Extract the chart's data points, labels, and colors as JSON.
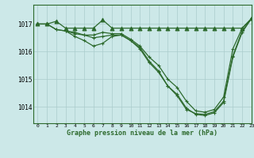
{
  "title": "Graphe pression niveau de la mer (hPa)",
  "background_color": "#cce8e8",
  "line_color": "#2d6a2d",
  "grid_color": "#aacccc",
  "xlim": [
    -0.5,
    23
  ],
  "ylim": [
    1013.4,
    1017.7
  ],
  "yticks": [
    1014,
    1015,
    1016,
    1017
  ],
  "xticks": [
    0,
    1,
    2,
    3,
    4,
    5,
    6,
    7,
    8,
    9,
    10,
    11,
    12,
    13,
    14,
    15,
    16,
    17,
    18,
    19,
    20,
    21,
    22,
    23
  ],
  "series": [
    {
      "x": [
        0,
        1,
        2,
        3,
        4,
        5,
        6,
        7,
        8,
        9,
        10,
        11,
        12,
        13,
        14,
        15,
        16,
        17,
        18,
        19,
        20,
        21,
        22,
        23
      ],
      "y": [
        1017.0,
        1017.0,
        1017.1,
        1016.85,
        1016.85,
        1016.85,
        1016.85,
        1017.15,
        1016.85,
        1016.85,
        1016.85,
        1016.85,
        1016.85,
        1016.85,
        1016.85,
        1016.85,
        1016.85,
        1016.85,
        1016.85,
        1016.85,
        1016.85,
        1016.85,
        1016.85,
        1017.2
      ],
      "marker": "^"
    },
    {
      "x": [
        0,
        1,
        2,
        3,
        4,
        5,
        6,
        7,
        8,
        9,
        10,
        11,
        12,
        13,
        14,
        15,
        16,
        17,
        18,
        19,
        20,
        21,
        22,
        23
      ],
      "y": [
        1017.0,
        1017.0,
        1016.8,
        1016.75,
        1016.7,
        1016.6,
        1016.6,
        1016.7,
        1016.65,
        1016.65,
        1016.45,
        1016.2,
        1015.8,
        1015.5,
        1015.0,
        1014.7,
        1014.2,
        1013.85,
        1013.8,
        1013.9,
        1014.35,
        1016.1,
        1016.85,
        1017.2
      ],
      "marker": "+"
    },
    {
      "x": [
        0,
        1,
        2,
        3,
        4,
        5,
        6,
        7,
        8,
        9,
        10,
        11,
        12,
        13,
        14,
        15,
        16,
        17,
        18,
        19,
        20,
        21,
        22,
        23
      ],
      "y": [
        1017.0,
        1017.0,
        1016.8,
        1016.75,
        1016.65,
        1016.6,
        1016.5,
        1016.55,
        1016.6,
        1016.6,
        1016.4,
        1016.1,
        1015.6,
        1015.25,
        1014.75,
        1014.4,
        1013.9,
        1013.75,
        1013.72,
        1013.82,
        1014.2,
        1015.85,
        1016.75,
        1017.2
      ],
      "marker": "+"
    },
    {
      "x": [
        3,
        4,
        5,
        6,
        7,
        8,
        9,
        10,
        11,
        12,
        13,
        14,
        15,
        16,
        17,
        18,
        19,
        20,
        21,
        22,
        23
      ],
      "y": [
        1016.75,
        1016.55,
        1016.4,
        1016.2,
        1016.3,
        1016.55,
        1016.6,
        1016.4,
        1016.15,
        1015.65,
        1015.3,
        1014.75,
        1014.45,
        1013.95,
        1013.72,
        1013.68,
        1013.78,
        1014.15,
        1015.8,
        1016.7,
        1017.2
      ],
      "marker": "+"
    }
  ]
}
